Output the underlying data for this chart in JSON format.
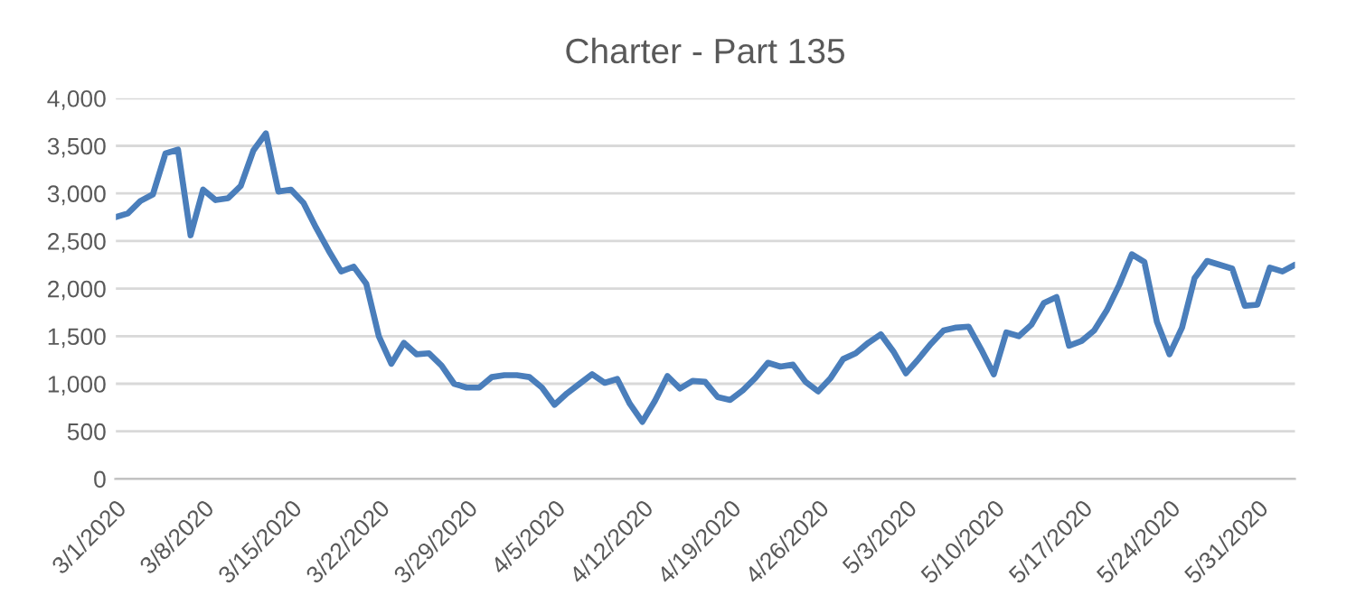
{
  "chart_data": {
    "type": "line",
    "title": "Charter - Part 135",
    "x": [
      "2020-03-01",
      "2020-03-02",
      "2020-03-03",
      "2020-03-04",
      "2020-03-05",
      "2020-03-06",
      "2020-03-07",
      "2020-03-08",
      "2020-03-09",
      "2020-03-10",
      "2020-03-11",
      "2020-03-12",
      "2020-03-13",
      "2020-03-14",
      "2020-03-15",
      "2020-03-16",
      "2020-03-17",
      "2020-03-18",
      "2020-03-19",
      "2020-03-20",
      "2020-03-21",
      "2020-03-22",
      "2020-03-23",
      "2020-03-24",
      "2020-03-25",
      "2020-03-26",
      "2020-03-27",
      "2020-03-28",
      "2020-03-29",
      "2020-03-30",
      "2020-03-31",
      "2020-04-01",
      "2020-04-02",
      "2020-04-03",
      "2020-04-04",
      "2020-04-05",
      "2020-04-06",
      "2020-04-07",
      "2020-04-08",
      "2020-04-09",
      "2020-04-10",
      "2020-04-11",
      "2020-04-12",
      "2020-04-13",
      "2020-04-14",
      "2020-04-15",
      "2020-04-16",
      "2020-04-17",
      "2020-04-18",
      "2020-04-19",
      "2020-04-20",
      "2020-04-21",
      "2020-04-22",
      "2020-04-23",
      "2020-04-24",
      "2020-04-25",
      "2020-04-26",
      "2020-04-27",
      "2020-04-28",
      "2020-04-29",
      "2020-04-30",
      "2020-05-01",
      "2020-05-02",
      "2020-05-03",
      "2020-05-04",
      "2020-05-05",
      "2020-05-06",
      "2020-05-07",
      "2020-05-08",
      "2020-05-09",
      "2020-05-10",
      "2020-05-11",
      "2020-05-12",
      "2020-05-13",
      "2020-05-14",
      "2020-05-15",
      "2020-05-16",
      "2020-05-17",
      "2020-05-18",
      "2020-05-19",
      "2020-05-20",
      "2020-05-21",
      "2020-05-22",
      "2020-05-23",
      "2020-05-24",
      "2020-05-25",
      "2020-05-26",
      "2020-05-27",
      "2020-05-28",
      "2020-05-29",
      "2020-05-30",
      "2020-05-31",
      "2020-06-01",
      "2020-06-02",
      "2020-06-03"
    ],
    "series": [
      {
        "color": "#4a7ebb",
        "values": [
          2750,
          2790,
          2920,
          2990,
          3420,
          3460,
          2560,
          3040,
          2930,
          2950,
          3080,
          3450,
          3630,
          3020,
          3040,
          2900,
          2640,
          2400,
          2180,
          2230,
          2050,
          1500,
          1210,
          1430,
          1310,
          1320,
          1190,
          1000,
          960,
          960,
          1070,
          1090,
          1090,
          1070,
          960,
          780,
          900,
          1000,
          1100,
          1010,
          1050,
          790,
          600,
          820,
          1080,
          950,
          1030,
          1020,
          860,
          830,
          930,
          1060,
          1220,
          1180,
          1200,
          1020,
          920,
          1060,
          1260,
          1320,
          1430,
          1520,
          1340,
          1110,
          1260,
          1420,
          1560,
          1590,
          1600,
          1360,
          1100,
          1540,
          1500,
          1620,
          1850,
          1910,
          1400,
          1450,
          1560,
          1770,
          2040,
          2360,
          2280,
          1650,
          1310,
          1590,
          2110,
          2290,
          2250,
          2210,
          1820,
          1830,
          2220,
          2180,
          2250
        ]
      }
    ],
    "xlim": [
      "2020-03-01",
      "2020-06-03"
    ],
    "xticks": [
      {
        "value": "2020-03-01",
        "label": "3/1/2020"
      },
      {
        "value": "2020-03-08",
        "label": "3/8/2020"
      },
      {
        "value": "2020-03-15",
        "label": "3/15/2020"
      },
      {
        "value": "2020-03-22",
        "label": "3/22/2020"
      },
      {
        "value": "2020-03-29",
        "label": "3/29/2020"
      },
      {
        "value": "2020-04-05",
        "label": "4/5/2020"
      },
      {
        "value": "2020-04-12",
        "label": "4/12/2020"
      },
      {
        "value": "2020-04-19",
        "label": "4/19/2020"
      },
      {
        "value": "2020-04-26",
        "label": "4/26/2020"
      },
      {
        "value": "2020-05-03",
        "label": "5/3/2020"
      },
      {
        "value": "2020-05-10",
        "label": "5/10/2020"
      },
      {
        "value": "2020-05-17",
        "label": "5/17/2020"
      },
      {
        "value": "2020-05-24",
        "label": "5/24/2020"
      },
      {
        "value": "2020-05-31",
        "label": "5/31/2020"
      }
    ],
    "ylim": [
      0,
      4000
    ],
    "yticks": [
      0,
      {
        "value": 500,
        "label": "500"
      },
      {
        "value": 1000,
        "label": "1,000"
      },
      {
        "value": 1500,
        "label": "1,500"
      },
      {
        "value": 2000,
        "label": "2,000"
      },
      {
        "value": 2500,
        "label": "2,500"
      },
      {
        "value": 3000,
        "label": "3,000"
      },
      {
        "value": 3500,
        "label": "3,500"
      },
      {
        "value": 4000,
        "label": "4,000"
      }
    ],
    "grid": "y",
    "marker": "none",
    "line_style": "solid"
  }
}
